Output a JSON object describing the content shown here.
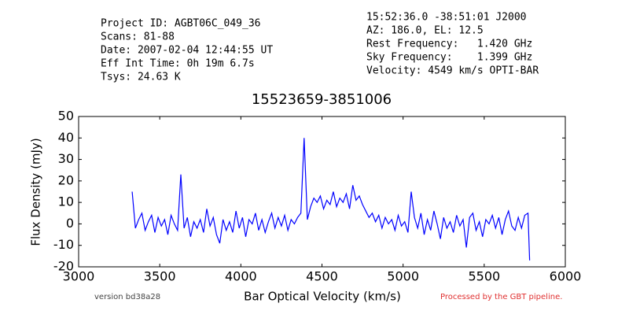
{
  "header": {
    "left": [
      "Project ID: AGBT06C_049_36",
      "Scans: 81-88",
      "Date: 2007-02-04 12:44:55 UT",
      "Eff Int Time: 0h 19m 6.7s",
      "Tsys: 24.63 K"
    ],
    "right": [
      "15:52:36.0 -38:51:01 J2000",
      "AZ: 186.0, EL: 12.5",
      "Rest Frequency:   1.420 GHz",
      "Sky Frequency:    1.399 GHz",
      "Velocity: 4549 km/s OPTI-BAR"
    ]
  },
  "footer": {
    "version": "version bd38a28",
    "credit": "Processed by the GBT pipeline."
  },
  "chart_data": {
    "type": "line",
    "title": "15523659-3851006",
    "x_label": "Bar Optical Velocity (km/s)",
    "y_label": "Flux Density (mJy)",
    "xlim": [
      3000,
      6000
    ],
    "xticks": [
      3000,
      3500,
      4000,
      4500,
      5000,
      5500,
      6000
    ],
    "ylim": [
      -20,
      50
    ],
    "yticks": [
      -20,
      -10,
      0,
      10,
      20,
      30,
      40,
      50
    ],
    "x": [
      3330,
      3350,
      3370,
      3390,
      3410,
      3430,
      3450,
      3470,
      3490,
      3510,
      3530,
      3550,
      3570,
      3590,
      3610,
      3630,
      3650,
      3670,
      3690,
      3710,
      3730,
      3750,
      3770,
      3790,
      3810,
      3830,
      3850,
      3870,
      3890,
      3910,
      3930,
      3950,
      3970,
      3990,
      4010,
      4030,
      4050,
      4070,
      4090,
      4110,
      4130,
      4150,
      4170,
      4190,
      4210,
      4230,
      4250,
      4270,
      4290,
      4310,
      4330,
      4350,
      4370,
      4390,
      4410,
      4430,
      4450,
      4470,
      4490,
      4510,
      4530,
      4550,
      4570,
      4590,
      4610,
      4630,
      4650,
      4670,
      4690,
      4710,
      4730,
      4750,
      4770,
      4790,
      4810,
      4830,
      4850,
      4870,
      4890,
      4910,
      4930,
      4950,
      4970,
      4990,
      5010,
      5030,
      5050,
      5070,
      5090,
      5110,
      5130,
      5150,
      5170,
      5190,
      5210,
      5230,
      5250,
      5270,
      5290,
      5310,
      5330,
      5350,
      5370,
      5390,
      5410,
      5430,
      5450,
      5470,
      5490,
      5510,
      5530,
      5550,
      5570,
      5590,
      5610,
      5630,
      5650,
      5670,
      5690,
      5710,
      5730,
      5750,
      5770,
      5780
    ],
    "series": [
      {
        "color": "#0000ff",
        "values": [
          15,
          -2,
          2,
          5,
          -3,
          1,
          4,
          -4,
          3,
          -1,
          2,
          -5,
          4,
          0,
          -3,
          23,
          -2,
          3,
          -6,
          1,
          -2,
          2,
          -4,
          7,
          -1,
          3,
          -5,
          -9,
          2,
          -3,
          1,
          -4,
          6,
          -2,
          3,
          -6,
          2,
          0,
          5,
          -3,
          2,
          -4,
          1,
          5,
          -2,
          3,
          -1,
          4,
          -3,
          2,
          0,
          3,
          5,
          40,
          2,
          8,
          12,
          10,
          13,
          7,
          11,
          9,
          15,
          8,
          12,
          10,
          14,
          7,
          18,
          11,
          13,
          9,
          6,
          3,
          5,
          1,
          4,
          -2,
          3,
          0,
          2,
          -3,
          4,
          -1,
          1,
          -4,
          15,
          3,
          -2,
          5,
          -5,
          2,
          -3,
          6,
          0,
          -7,
          3,
          -2,
          1,
          -4,
          4,
          -1,
          2,
          -11,
          3,
          5,
          -3,
          1,
          -6,
          2,
          0,
          4,
          -2,
          3,
          -5,
          2,
          6,
          -1,
          -3,
          3,
          -2,
          4,
          5,
          -17
        ]
      }
    ]
  }
}
